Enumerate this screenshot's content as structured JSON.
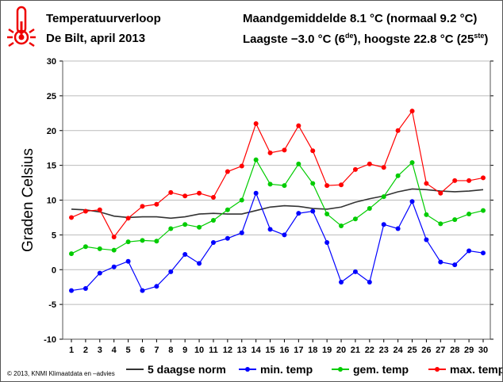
{
  "header": {
    "title": "Temperatuurverloop",
    "subtitle": "De Bilt, april 2013",
    "stat1": "Maandgemiddelde 8.1 °C (normaal 9.2 °C)",
    "stat2_a": "Laagste −3.0 °C (6",
    "stat2_sup1": "de",
    "stat2_b": "), hoogste 22.8 °C (25",
    "stat2_sup2": "ste",
    "stat2_c": ")"
  },
  "footer": {
    "copyright": "© 2013, KNMI Klimaatdata en –advies"
  },
  "chart_data": {
    "type": "line",
    "title": "Temperatuurverloop",
    "xlabel": "",
    "ylabel": "Graden Celsius",
    "ylim": [
      -10,
      30
    ],
    "yticks": [
      -10,
      -5,
      0,
      5,
      10,
      15,
      20,
      25,
      30
    ],
    "x": [
      1,
      2,
      3,
      4,
      5,
      6,
      7,
      8,
      9,
      10,
      11,
      12,
      13,
      14,
      15,
      16,
      17,
      18,
      19,
      20,
      21,
      22,
      23,
      24,
      25,
      26,
      27,
      28,
      29,
      30
    ],
    "legend_position": "bottom",
    "series": [
      {
        "name": "5 daagse norm",
        "color": "#333333",
        "markers": false,
        "values": [
          8.7,
          8.6,
          8.3,
          7.7,
          7.5,
          7.6,
          7.6,
          7.4,
          7.6,
          8.0,
          8.1,
          8.0,
          8.0,
          8.5,
          9.0,
          9.2,
          9.1,
          8.8,
          8.7,
          9.0,
          9.7,
          10.2,
          10.6,
          11.2,
          11.6,
          11.5,
          11.3,
          11.2,
          11.3,
          11.5
        ]
      },
      {
        "name": "min. temp",
        "color": "#0000ff",
        "markers": true,
        "values": [
          -3.0,
          -2.7,
          -0.5,
          0.4,
          1.2,
          -3.0,
          -2.4,
          -0.3,
          2.2,
          0.9,
          3.9,
          4.5,
          5.3,
          11.0,
          5.8,
          5.0,
          8.1,
          8.4,
          3.9,
          -1.8,
          -0.3,
          -1.8,
          6.5,
          5.9,
          9.8,
          4.3,
          1.1,
          0.7,
          2.7,
          2.4
        ]
      },
      {
        "name": "gem. temp",
        "color": "#00cc00",
        "markers": true,
        "values": [
          2.3,
          3.3,
          3.0,
          2.8,
          4.0,
          4.2,
          4.1,
          5.9,
          6.5,
          6.1,
          7.1,
          8.6,
          10.0,
          15.8,
          12.3,
          12.1,
          15.2,
          12.4,
          8.0,
          6.3,
          7.3,
          8.8,
          10.5,
          13.5,
          15.4,
          7.9,
          6.6,
          7.2,
          8.0,
          8.5
        ]
      },
      {
        "name": "max. temp",
        "color": "#ff0000",
        "markers": true,
        "values": [
          7.5,
          8.4,
          8.6,
          4.7,
          7.4,
          9.1,
          9.4,
          11.1,
          10.6,
          11.0,
          10.4,
          14.1,
          14.9,
          21.0,
          16.8,
          17.2,
          20.7,
          17.1,
          12.1,
          12.2,
          14.4,
          15.2,
          14.7,
          20.0,
          22.8,
          12.4,
          11.0,
          12.8,
          12.8,
          13.2
        ]
      }
    ]
  }
}
